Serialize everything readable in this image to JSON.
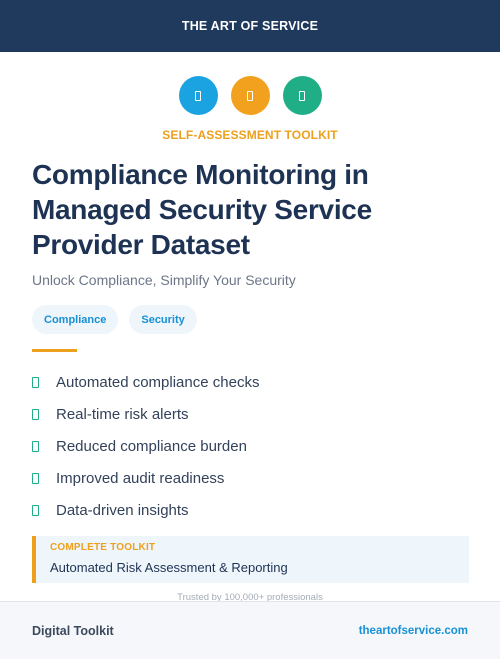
{
  "header": {
    "brand": "THE ART OF SERVICE"
  },
  "icons": [
    "document-icon",
    "document-icon",
    "document-icon"
  ],
  "eyebrow": "SELF-ASSESSMENT TOOLKIT",
  "title": "Compliance Monitoring in Managed Security Service Provider Dataset",
  "subtitle": "Unlock Compliance, Simplify Your Security",
  "tags": [
    "Compliance",
    "Security"
  ],
  "features": [
    "Automated compliance checks",
    "Real-time risk alerts",
    "Reduced compliance burden",
    "Improved audit readiness",
    "Data-driven insights"
  ],
  "callout": {
    "label": "COMPLETE TOOLKIT",
    "text": "Automated Risk Assessment & Reporting"
  },
  "trusted": "Trusted by 100,000+ professionals",
  "footer": {
    "left": "Digital Toolkit",
    "right": "theartofservice.com"
  },
  "colors": {
    "navy": "#1f3a5c",
    "blue": "#1aa3e0",
    "orange": "#f2a11f",
    "green": "#1fae86"
  }
}
